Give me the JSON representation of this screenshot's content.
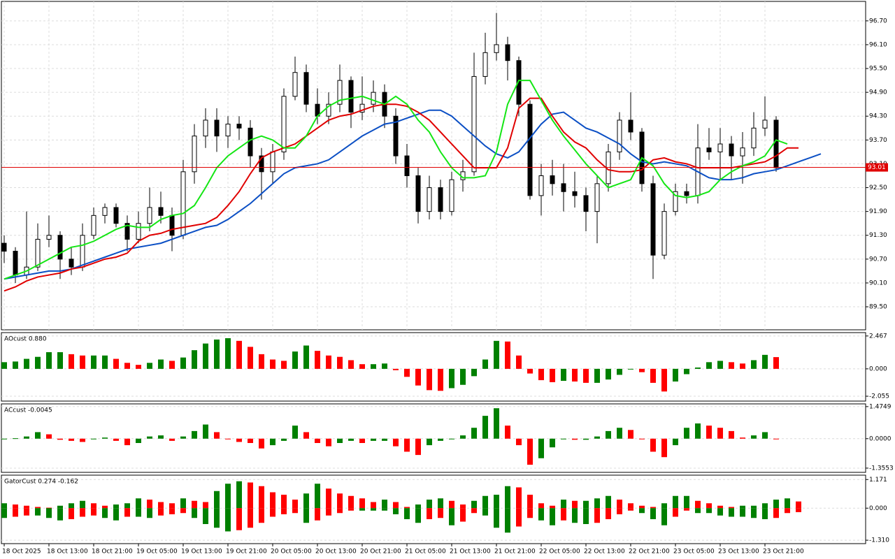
{
  "chart_data": [
    {
      "type": "candlestick",
      "categories": [
        "18 Oct 2025",
        null,
        null,
        null,
        "18 Oct 13:00",
        null,
        null,
        null,
        "18 Oct 21:00",
        null,
        null,
        null,
        "19 Oct 05:00",
        null,
        null,
        null,
        "19 Oct 13:00",
        null,
        null,
        null,
        "19 Oct 21:00",
        null,
        null,
        null,
        "20 Oct 05:00",
        null,
        null,
        null,
        "20 Oct 13:00",
        null,
        null,
        null,
        "20 Oct 21:00",
        null,
        null,
        null,
        "21 Oct 05:00",
        null,
        null,
        null,
        "21 Oct 13:00",
        null,
        null,
        null,
        "21 Oct 21:00",
        null,
        null,
        null,
        "22 Oct 05:00",
        null,
        null,
        null,
        "22 Oct 13:00",
        null,
        null,
        null,
        "22 Oct 21:00",
        null,
        null,
        null,
        "23 Oct 05:00",
        null,
        null,
        null,
        "23 Oct 13:00",
        null,
        null,
        null,
        "23 Oct 21:00",
        null,
        null,
        null,
        null,
        null
      ],
      "candles": [
        [
          91.1,
          91.3,
          90.6,
          90.9
        ],
        [
          90.9,
          91.0,
          90.1,
          90.3
        ],
        [
          90.3,
          91.9,
          90.2,
          90.5
        ],
        [
          90.5,
          91.6,
          90.4,
          91.2
        ],
        [
          91.2,
          91.8,
          91.0,
          91.3
        ],
        [
          91.3,
          91.4,
          90.2,
          90.7
        ],
        [
          90.7,
          91.0,
          90.3,
          90.5
        ],
        [
          90.5,
          91.6,
          90.4,
          91.3
        ],
        [
          91.3,
          92.0,
          91.2,
          91.8
        ],
        [
          91.8,
          92.1,
          91.6,
          92.0
        ],
        [
          92.0,
          92.1,
          91.5,
          91.6
        ],
        [
          91.6,
          91.8,
          90.9,
          91.2
        ],
        [
          91.2,
          91.9,
          91.1,
          91.6
        ],
        [
          91.6,
          92.5,
          91.4,
          92.0
        ],
        [
          92.0,
          92.4,
          91.6,
          91.8
        ],
        [
          91.8,
          92.0,
          90.9,
          91.3
        ],
        [
          91.3,
          93.2,
          91.2,
          92.9
        ],
        [
          92.9,
          94.1,
          92.6,
          93.8
        ],
        [
          93.8,
          94.5,
          93.5,
          94.2
        ],
        [
          94.2,
          94.5,
          93.4,
          93.8
        ],
        [
          93.8,
          94.3,
          93.5,
          94.1
        ],
        [
          94.1,
          94.3,
          93.7,
          94.0
        ],
        [
          94.0,
          94.2,
          93.0,
          93.3
        ],
        [
          93.3,
          93.5,
          92.2,
          92.9
        ],
        [
          92.9,
          93.6,
          92.6,
          93.4
        ],
        [
          93.4,
          95.0,
          93.2,
          94.8
        ],
        [
          94.8,
          95.8,
          94.7,
          95.4
        ],
        [
          95.4,
          95.6,
          94.4,
          94.6
        ],
        [
          94.6,
          95.0,
          94.1,
          94.3
        ],
        [
          94.3,
          94.9,
          94.1,
          94.6
        ],
        [
          94.6,
          95.6,
          94.4,
          95.2
        ],
        [
          95.2,
          95.3,
          94.0,
          94.4
        ],
        [
          94.4,
          95.3,
          94.2,
          94.6
        ],
        [
          94.6,
          95.2,
          94.4,
          94.9
        ],
        [
          94.9,
          95.1,
          94.0,
          94.3
        ],
        [
          94.3,
          94.5,
          93.1,
          93.3
        ],
        [
          93.3,
          93.6,
          92.5,
          92.8
        ],
        [
          92.8,
          93.0,
          91.6,
          91.9
        ],
        [
          91.9,
          92.8,
          91.7,
          92.5
        ],
        [
          92.5,
          92.7,
          91.7,
          91.9
        ],
        [
          91.9,
          92.9,
          91.8,
          92.7
        ],
        [
          92.7,
          93.2,
          92.4,
          92.9
        ],
        [
          92.9,
          95.9,
          92.8,
          95.3
        ],
        [
          95.3,
          96.4,
          95.1,
          95.9
        ],
        [
          95.9,
          96.9,
          95.7,
          96.1
        ],
        [
          96.1,
          96.3,
          95.2,
          95.7
        ],
        [
          95.7,
          95.8,
          94.3,
          94.6
        ],
        [
          94.6,
          94.7,
          92.2,
          92.3
        ],
        [
          92.3,
          93.1,
          91.8,
          92.8
        ],
        [
          92.8,
          93.2,
          92.3,
          92.6
        ],
        [
          92.6,
          93.1,
          91.9,
          92.4
        ],
        [
          92.4,
          92.9,
          92.0,
          92.3
        ],
        [
          92.3,
          92.5,
          91.4,
          91.9
        ],
        [
          91.9,
          92.8,
          91.1,
          92.6
        ],
        [
          92.6,
          93.6,
          92.4,
          93.4
        ],
        [
          93.4,
          94.4,
          93.2,
          94.2
        ],
        [
          94.2,
          94.9,
          93.7,
          93.9
        ],
        [
          93.9,
          94.0,
          92.4,
          92.6
        ],
        [
          92.6,
          92.8,
          90.2,
          90.8
        ],
        [
          90.8,
          92.1,
          90.7,
          91.9
        ],
        [
          91.9,
          92.6,
          91.8,
          92.4
        ],
        [
          92.4,
          92.6,
          92.1,
          92.3
        ],
        [
          92.3,
          94.1,
          92.1,
          93.5
        ],
        [
          93.5,
          94.0,
          93.2,
          93.4
        ],
        [
          93.4,
          94.0,
          92.7,
          93.6
        ],
        [
          93.6,
          93.8,
          92.7,
          93.3
        ],
        [
          93.3,
          93.9,
          92.6,
          93.5
        ],
        [
          93.5,
          94.4,
          93.3,
          94.0
        ],
        [
          94.0,
          94.8,
          93.8,
          94.2
        ],
        [
          94.2,
          94.3,
          92.9,
          93.0
        ],
        null,
        null,
        null,
        null
      ],
      "bull_color": "#ffffff",
      "bear_color": "#000000",
      "lines": [
        {
          "color": "#0b4fc4",
          "values": [
            90.2,
            90.25,
            90.3,
            90.35,
            90.4,
            90.4,
            90.45,
            90.55,
            90.65,
            90.75,
            90.85,
            90.95,
            91.0,
            91.05,
            91.1,
            91.2,
            91.3,
            91.4,
            91.5,
            91.55,
            91.7,
            91.9,
            92.1,
            92.35,
            92.6,
            92.85,
            93.0,
            93.05,
            93.1,
            93.2,
            93.4,
            93.6,
            93.8,
            93.95,
            94.1,
            94.15,
            94.25,
            94.35,
            94.45,
            94.45,
            94.3,
            94.05,
            93.8,
            93.55,
            93.35,
            93.25,
            93.4,
            93.75,
            94.1,
            94.35,
            94.4,
            94.2,
            94.0,
            93.9,
            93.75,
            93.6,
            93.35,
            93.15,
            93.1,
            93.15,
            93.1,
            93.05,
            92.9,
            92.75,
            92.7,
            92.7,
            92.75,
            92.85,
            92.9,
            92.95,
            93.05,
            93.15,
            93.25,
            93.35
          ]
        },
        {
          "color": "#e00000",
          "values": [
            89.9,
            90.0,
            90.15,
            90.25,
            90.3,
            90.35,
            90.45,
            90.5,
            90.6,
            90.7,
            90.75,
            90.85,
            91.15,
            91.3,
            91.35,
            91.45,
            91.5,
            91.55,
            91.6,
            91.75,
            92.05,
            92.4,
            92.85,
            93.25,
            93.4,
            93.5,
            93.6,
            93.8,
            94.0,
            94.2,
            94.3,
            94.35,
            94.45,
            94.55,
            94.6,
            94.6,
            94.55,
            94.4,
            94.2,
            93.9,
            93.6,
            93.3,
            93.0,
            93.0,
            93.0,
            93.5,
            94.5,
            94.75,
            94.75,
            94.3,
            93.9,
            93.65,
            93.5,
            93.2,
            92.95,
            92.9,
            92.9,
            92.95,
            93.2,
            93.25,
            93.15,
            93.1,
            93.0,
            93.0,
            93.0,
            93.0,
            93.05,
            93.1,
            93.15,
            93.3,
            93.5,
            93.5,
            null,
            null
          ]
        },
        {
          "color": "#14e614",
          "values": [
            90.2,
            90.3,
            90.4,
            90.55,
            90.7,
            90.85,
            91.0,
            91.05,
            91.15,
            91.3,
            91.45,
            91.55,
            91.5,
            91.5,
            91.7,
            91.8,
            91.85,
            92.05,
            92.5,
            93.0,
            93.3,
            93.5,
            93.7,
            93.8,
            93.7,
            93.5,
            93.5,
            93.8,
            94.3,
            94.55,
            94.7,
            94.75,
            94.8,
            94.7,
            94.6,
            94.8,
            94.6,
            94.2,
            93.9,
            93.4,
            93.0,
            92.75,
            92.75,
            92.8,
            93.4,
            94.6,
            95.2,
            95.2,
            94.7,
            94.2,
            93.8,
            93.45,
            93.1,
            92.8,
            92.5,
            92.6,
            92.7,
            93.25,
            93.05,
            92.6,
            92.3,
            92.25,
            92.3,
            92.4,
            92.7,
            92.9,
            93.05,
            93.15,
            93.3,
            93.7,
            93.6,
            null,
            null,
            null
          ]
        }
      ],
      "last_price": 93.01,
      "last_price_color": "#e00000",
      "ylim": [
        88.92,
        97.19
      ],
      "yticks": [
        {
          "value": 89.5,
          "label": "89.50"
        },
        {
          "value": 90.1,
          "label": "90.10"
        },
        {
          "value": 90.7,
          "label": "90.70"
        },
        {
          "value": 91.3,
          "label": "91.30"
        },
        {
          "value": 91.9,
          "label": "91.90"
        },
        {
          "value": 92.5,
          "label": "92.50"
        },
        {
          "value": 93.1,
          "label": "93.10"
        },
        {
          "value": 93.7,
          "label": "93.70"
        },
        {
          "value": 94.3,
          "label": "94.30"
        },
        {
          "value": 94.9,
          "label": "94.90"
        },
        {
          "value": 95.5,
          "label": "95.50"
        },
        {
          "value": 96.1,
          "label": "96.10"
        },
        {
          "value": 96.7,
          "label": "96.70"
        }
      ],
      "grid": true
    },
    {
      "type": "bar",
      "title": "AOcust 0.880",
      "up_color": "#008000",
      "down_color": "#ff0000",
      "values": [
        0.5,
        0.55,
        0.75,
        0.9,
        1.25,
        1.25,
        1.1,
        1.0,
        1.0,
        1.0,
        0.75,
        0.45,
        0.3,
        0.45,
        0.7,
        0.6,
        0.85,
        1.4,
        1.9,
        2.2,
        2.3,
        2.1,
        1.65,
        1.1,
        0.7,
        0.6,
        1.3,
        1.75,
        1.35,
        1.0,
        0.9,
        0.65,
        0.35,
        0.35,
        0.4,
        -0.1,
        -0.6,
        -1.25,
        -1.6,
        -1.65,
        -1.45,
        -1.2,
        -0.55,
        0.7,
        2.1,
        2.05,
        1.0,
        -0.35,
        -0.85,
        -1.0,
        -0.9,
        -0.95,
        -1.05,
        -1.05,
        -0.8,
        -0.45,
        -0.05,
        -0.25,
        -1.05,
        -1.7,
        -0.95,
        -0.4,
        0.1,
        0.5,
        0.6,
        0.5,
        0.4,
        0.65,
        1.05,
        0.88,
        null,
        null,
        null,
        null
      ],
      "ylim": [
        -2.42,
        2.72
      ],
      "yticks": [
        2.467,
        {
          "value": 0,
          "label": "0.000"
        },
        -2.055
      ],
      "grid": true
    },
    {
      "type": "bar",
      "title": "ACcust -0.0045",
      "up_color": "#008000",
      "down_color": "#ff0000",
      "values": [
        0.0,
        0.02,
        0.1,
        0.3,
        0.2,
        -0.05,
        -0.1,
        -0.15,
        0.0,
        0.05,
        -0.1,
        -0.3,
        -0.2,
        0.1,
        0.15,
        -0.1,
        0.1,
        0.35,
        0.65,
        0.3,
        0.0,
        -0.15,
        -0.2,
        -0.45,
        -0.3,
        -0.1,
        0.6,
        0.3,
        -0.2,
        -0.35,
        -0.2,
        -0.1,
        -0.2,
        -0.1,
        -0.1,
        -0.35,
        -0.6,
        -0.75,
        -0.3,
        -0.1,
        0.0,
        0.15,
        0.5,
        1.05,
        1.4,
        0.6,
        -0.3,
        -1.2,
        -0.9,
        -0.4,
        0.0,
        -0.05,
        -0.05,
        0.1,
        0.35,
        0.5,
        0.4,
        0.0,
        -0.6,
        -0.85,
        -0.3,
        0.5,
        0.7,
        0.6,
        0.5,
        0.35,
        0.05,
        0.15,
        0.3,
        -0.0045,
        null,
        null,
        null,
        null
      ],
      "ylim": [
        -1.55,
        1.6
      ],
      "yticks": [
        1.4749,
        {
          "value": 0,
          "label": "0.0000"
        },
        -1.3553
      ],
      "grid": true
    },
    {
      "type": "bar",
      "title": "GatorCust 0.274 -0.162",
      "up_color": "#008000",
      "down_color": "#ff0000",
      "series": [
        {
          "values": [
            0.2,
            0.15,
            0.1,
            0.05,
            0.02,
            0.1,
            0.2,
            0.3,
            0.2,
            0.1,
            0.15,
            0.2,
            0.4,
            0.35,
            0.25,
            0.2,
            0.4,
            0.3,
            0.25,
            0.7,
            1.0,
            1.1,
            1.05,
            0.9,
            0.65,
            0.55,
            0.35,
            0.6,
            1.0,
            0.8,
            0.6,
            0.5,
            0.4,
            0.25,
            0.35,
            0.25,
            0.05,
            0.15,
            0.35,
            0.4,
            0.3,
            0.15,
            0.3,
            0.5,
            0.55,
            0.9,
            0.85,
            0.55,
            0.2,
            0.1,
            0.35,
            0.3,
            0.3,
            0.4,
            0.5,
            0.35,
            0.2,
            0.1,
            0.05,
            0.2,
            0.5,
            0.5,
            0.3,
            0.2,
            0.1,
            0.05,
            0.1,
            0.1,
            0.2,
            0.35,
            0.4,
            0.274,
            null,
            null
          ]
        },
        {
          "values": [
            -0.4,
            -0.35,
            -0.3,
            -0.3,
            -0.4,
            -0.5,
            -0.45,
            -0.35,
            -0.3,
            -0.4,
            -0.5,
            -0.35,
            -0.35,
            -0.4,
            -0.3,
            -0.25,
            -0.2,
            -0.4,
            -0.65,
            -0.8,
            -0.95,
            -0.9,
            -0.8,
            -0.6,
            -0.35,
            -0.25,
            -0.2,
            -0.6,
            -0.5,
            -0.3,
            -0.2,
            -0.1,
            -0.1,
            -0.1,
            -0.1,
            -0.25,
            -0.45,
            -0.6,
            -0.45,
            -0.4,
            -0.7,
            -0.55,
            -0.2,
            -0.3,
            -0.8,
            -1.0,
            -0.75,
            -0.4,
            -0.5,
            -0.7,
            -0.5,
            -0.6,
            -0.65,
            -0.6,
            -0.45,
            -0.25,
            -0.1,
            -0.2,
            -0.45,
            -0.7,
            -0.35,
            -0.1,
            -0.2,
            -0.2,
            -0.3,
            -0.35,
            -0.35,
            -0.4,
            -0.45,
            -0.4,
            -0.2,
            -0.162,
            null,
            null
          ]
        }
      ],
      "ylim": [
        -1.45,
        1.35
      ],
      "yticks": [
        1.171,
        {
          "value": 0,
          "label": "0.000"
        },
        {
          "value": -1.31,
          "label": "-1.310"
        }
      ],
      "grid": true
    }
  ]
}
